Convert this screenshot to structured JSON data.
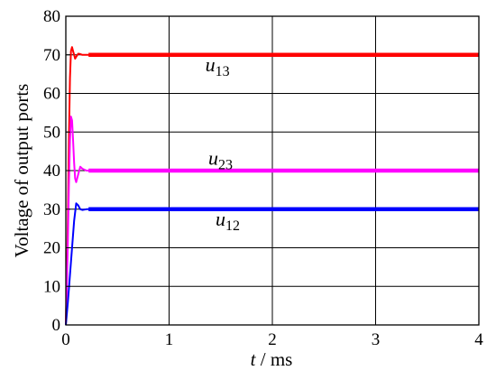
{
  "chart_data": {
    "type": "line",
    "xlabel": {
      "var": "t",
      "sep": " / ",
      "unit": "ms"
    },
    "ylabel": "Voltage of output ports",
    "xlim": [
      0,
      4
    ],
    "ylim": [
      0,
      80
    ],
    "xticks": [
      0,
      1,
      2,
      3,
      4
    ],
    "yticks": [
      0,
      10,
      20,
      30,
      40,
      50,
      60,
      70,
      80
    ],
    "grid": true,
    "series": [
      {
        "name": "u13",
        "label": {
          "base": "u",
          "sub": "13"
        },
        "color": "#ff0000",
        "x": [
          0,
          0.01,
          0.02,
          0.03,
          0.04,
          0.05,
          0.06,
          0.07,
          0.08,
          0.09,
          0.1,
          0.12,
          0.14,
          0.16,
          0.2,
          0.25,
          4
        ],
        "y": [
          0,
          12,
          28,
          48,
          64,
          71,
          72,
          71,
          70,
          69,
          69.5,
          70.3,
          70.2,
          70,
          70,
          70,
          70
        ]
      },
      {
        "name": "u23",
        "label": {
          "base": "u",
          "sub": "23"
        },
        "color": "#ff00ff",
        "x": [
          0,
          0.01,
          0.02,
          0.03,
          0.04,
          0.05,
          0.06,
          0.07,
          0.08,
          0.09,
          0.1,
          0.12,
          0.14,
          0.16,
          0.2,
          0.25,
          4
        ],
        "y": [
          0,
          10,
          22,
          36,
          48,
          54,
          53,
          48,
          42,
          38,
          37,
          39,
          41,
          40.5,
          40,
          40,
          40
        ]
      },
      {
        "name": "u12",
        "label": {
          "base": "u",
          "sub": "12"
        },
        "color": "#0000ff",
        "x": [
          0,
          0.02,
          0.04,
          0.06,
          0.08,
          0.1,
          0.12,
          0.14,
          0.16,
          0.2,
          4
        ],
        "y": [
          0,
          6,
          13,
          20,
          27,
          31.5,
          31,
          30,
          29.8,
          30,
          30
        ]
      }
    ]
  }
}
